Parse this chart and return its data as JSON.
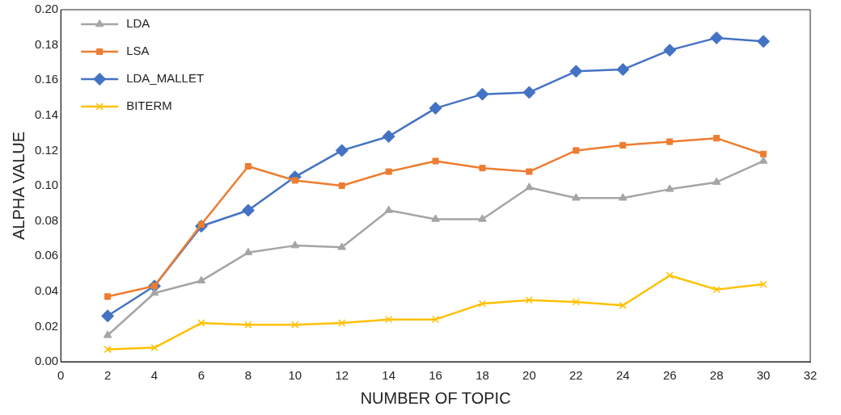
{
  "chart_data": {
    "type": "line",
    "xlabel": "NUMBER OF TOPIC",
    "ylabel": "ALPHA VALUE",
    "x": [
      2,
      4,
      6,
      8,
      10,
      12,
      14,
      16,
      18,
      20,
      22,
      24,
      26,
      28,
      30
    ],
    "series": [
      {
        "name": "LDA",
        "color": "#a5a5a5",
        "marker": "triangle",
        "values": [
          0.015,
          0.039,
          0.046,
          0.062,
          0.066,
          0.065,
          0.086,
          0.081,
          0.081,
          0.099,
          0.093,
          0.093,
          0.098,
          0.102,
          0.114
        ]
      },
      {
        "name": "LSA",
        "color": "#ed7d31",
        "marker": "square",
        "values": [
          0.037,
          0.043,
          0.078,
          0.111,
          0.103,
          0.1,
          0.108,
          0.114,
          0.11,
          0.108,
          0.12,
          0.123,
          0.125,
          0.127,
          0.118
        ]
      },
      {
        "name": "LDA_MALLET",
        "color": "#4472c4",
        "marker": "diamond",
        "values": [
          0.026,
          0.043,
          0.077,
          0.086,
          0.105,
          0.12,
          0.128,
          0.144,
          0.152,
          0.153,
          0.165,
          0.166,
          0.177,
          0.184,
          0.182
        ]
      },
      {
        "name": "BITERM",
        "color": "#ffc000",
        "marker": "cross",
        "values": [
          0.007,
          0.008,
          0.022,
          0.021,
          0.021,
          0.022,
          0.024,
          0.024,
          0.033,
          0.035,
          0.034,
          0.032,
          0.049,
          0.041,
          0.044
        ]
      }
    ],
    "xlim": [
      0,
      32
    ],
    "xticks": [
      0,
      2,
      4,
      6,
      8,
      10,
      12,
      14,
      16,
      18,
      20,
      22,
      24,
      26,
      28,
      30,
      32
    ],
    "ylim": [
      0,
      0.2
    ],
    "yticks": [
      {
        "value": 0,
        "label": "0.00"
      },
      {
        "value": 0.02,
        "label": "0.02"
      },
      {
        "value": 0.04,
        "label": "0.04"
      },
      {
        "value": 0.06,
        "label": "0.06"
      },
      {
        "value": 0.08,
        "label": "0.08"
      },
      {
        "value": 0.1,
        "label": "0.10"
      },
      {
        "value": 0.12,
        "label": "0.12"
      },
      {
        "value": 0.14,
        "label": "0.14"
      },
      {
        "value": 0.16,
        "label": "0.16"
      },
      {
        "value": 0.18,
        "label": "0.18"
      },
      {
        "value": 0.2,
        "label": "0.20"
      }
    ],
    "grid": false,
    "legend": "top left",
    "line_style": "solid"
  }
}
